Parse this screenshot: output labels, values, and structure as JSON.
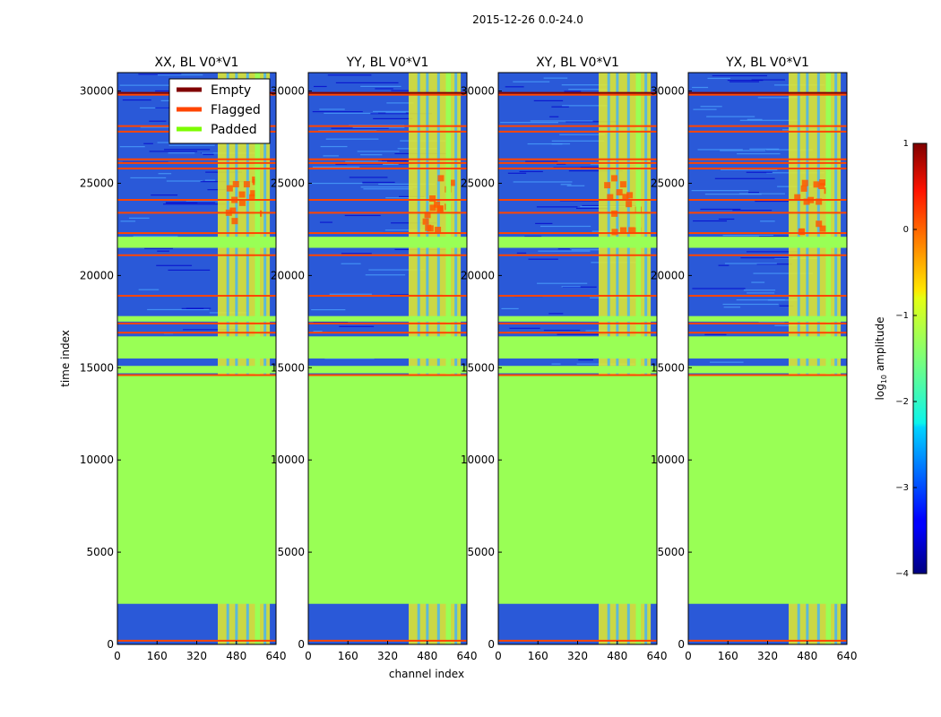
{
  "figure": {
    "suptitle": "2015-12-26 0.0-24.0",
    "xlabel": "channel index",
    "ylabel": "time index"
  },
  "legend": {
    "location": "upper-right of first panel",
    "entries": [
      {
        "label": "Empty",
        "color": "#800000"
      },
      {
        "label": "Flagged",
        "color": "#ff4500"
      },
      {
        "label": "Padded",
        "color": "#7cfc00"
      }
    ]
  },
  "colorbar": {
    "label": "log$_{10}$ amplitude",
    "label_text": "log",
    "label_sub": "10",
    "label_rest": " amplitude",
    "min": -4,
    "max": 1,
    "ticks": [
      -4,
      -3,
      -2,
      -1,
      0,
      1
    ],
    "tick_labels": [
      "−4",
      "−3",
      "−2",
      "−1",
      "0",
      "1"
    ],
    "colormap": "jet"
  },
  "chart_data": {
    "type": "heatmap",
    "colormap": "jet",
    "xlim": [
      0,
      640
    ],
    "ylim": [
      0,
      31000
    ],
    "xticks": [
      0,
      160,
      320,
      480,
      640
    ],
    "yticks": [
      0,
      5000,
      10000,
      15000,
      20000,
      25000,
      30000
    ],
    "panels": [
      {
        "title": "XX, BL V0*V1"
      },
      {
        "title": "YY, BL V0*V1"
      },
      {
        "title": "XY, BL V0*V1"
      },
      {
        "title": "YX, BL V0*V1"
      }
    ],
    "padded_time_ranges": [
      [
        2200,
        14600
      ],
      [
        14700,
        15100
      ],
      [
        15500,
        16700
      ],
      [
        17500,
        17800
      ],
      [
        21500,
        22100
      ]
    ],
    "flagged_time_rows": [
      200,
      14600,
      16900,
      17400,
      18900,
      21100,
      22300,
      23400,
      24100,
      25800,
      26100,
      26300,
      27800,
      28100,
      29800
    ],
    "empty_time_rows": [
      29900
    ],
    "padded_channel_ranges": [
      [
        555,
        575
      ]
    ],
    "rfi_channel_range": [
      405,
      615
    ]
  }
}
